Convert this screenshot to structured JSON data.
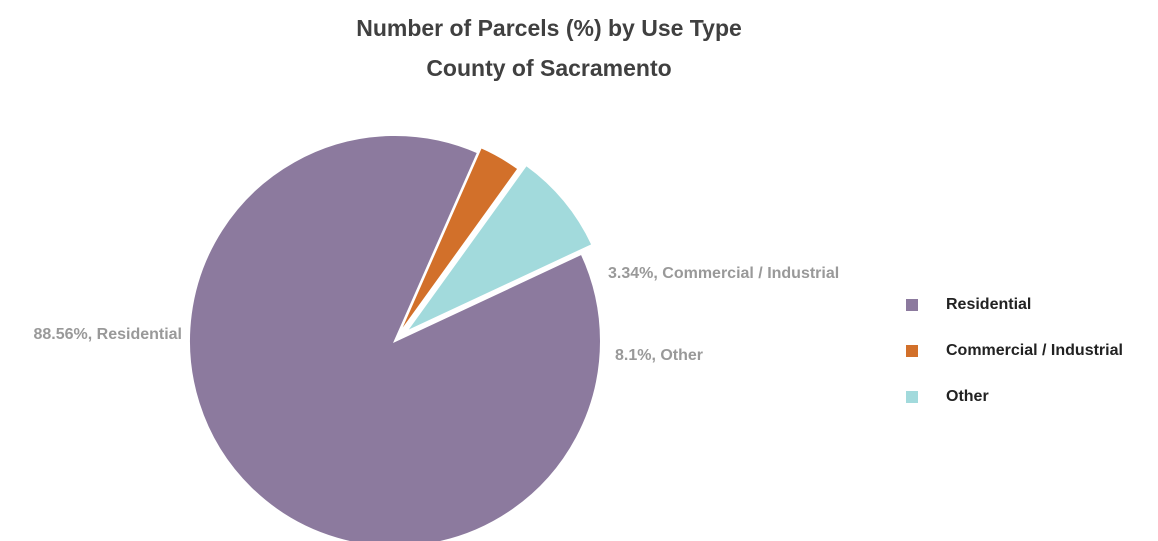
{
  "chart_data": {
    "type": "pie",
    "title": "Number of Parcels (%) by Use Type",
    "subtitle": "County of Sacramento",
    "slices": [
      {
        "label": "Residential",
        "value": 88.56,
        "color": "#8c7a9e",
        "data_label": "88.56%, Residential"
      },
      {
        "label": "Commercial / Industrial",
        "value": 3.34,
        "color": "#d2702a",
        "data_label": "3.34%, Commercial / Industrial"
      },
      {
        "label": "Other",
        "value": 8.1,
        "color": "#a2dadc",
        "data_label": "8.1%, Other"
      }
    ],
    "legend": {
      "position": "right",
      "items": [
        "Residential",
        "Commercial / Industrial",
        "Other"
      ]
    },
    "data_label_color": "#999999"
  }
}
